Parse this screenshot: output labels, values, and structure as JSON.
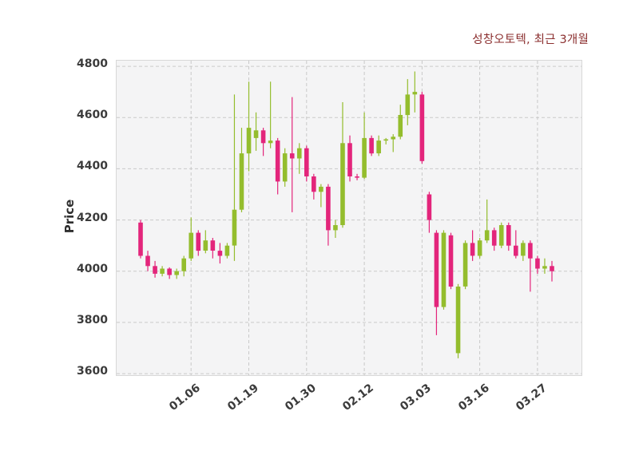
{
  "title": "성창오토텍, 최근 3개월",
  "colors": {
    "up": "#94bd2d",
    "down": "#e3257b",
    "grid": "#c9c9c9",
    "plot_background": "#f4f4f5",
    "title_text": "#8b2f2f",
    "tick_text": "#3b3b3b"
  },
  "chart_data": {
    "type": "candlestick",
    "title": "성창오토텍, 최근 3개월",
    "ylabel": "Price",
    "grid": "dashed",
    "legend": "none",
    "ylim": [
      3594,
      4822
    ],
    "yticks": [
      3600,
      3800,
      4000,
      4200,
      4400,
      4600,
      4800
    ],
    "xticks": [
      {
        "label": "01.06",
        "i": 7
      },
      {
        "label": "01.19",
        "i": 15
      },
      {
        "label": "01.30",
        "i": 23
      },
      {
        "label": "02.12",
        "i": 31
      },
      {
        "label": "03.03",
        "i": 39
      },
      {
        "label": "03.16",
        "i": 47
      },
      {
        "label": "03.27",
        "i": 55
      }
    ],
    "ohlc_order": [
      "open",
      "high",
      "low",
      "close"
    ],
    "candles": [
      [
        4190,
        4200,
        4050,
        4060
      ],
      [
        4060,
        4080,
        4000,
        4020
      ],
      [
        4020,
        4040,
        3975,
        3990
      ],
      [
        3990,
        4020,
        3980,
        4010
      ],
      [
        4010,
        4015,
        3970,
        3985
      ],
      [
        3985,
        4010,
        3970,
        4000
      ],
      [
        4000,
        4060,
        3980,
        4050
      ],
      [
        4050,
        4210,
        4040,
        4150
      ],
      [
        4150,
        4160,
        4060,
        4080
      ],
      [
        4080,
        4160,
        4070,
        4120
      ],
      [
        4120,
        4130,
        4050,
        4080
      ],
      [
        4080,
        4110,
        4030,
        4060
      ],
      [
        4060,
        4110,
        4050,
        4100
      ],
      [
        4100,
        4690,
        4040,
        4240
      ],
      [
        4240,
        4560,
        4230,
        4460
      ],
      [
        4460,
        4740,
        4390,
        4560
      ],
      [
        4520,
        4620,
        4470,
        4550
      ],
      [
        4550,
        4560,
        4450,
        4500
      ],
      [
        4500,
        4740,
        4480,
        4510
      ],
      [
        4510,
        4520,
        4300,
        4350
      ],
      [
        4350,
        4480,
        4330,
        4460
      ],
      [
        4460,
        4680,
        4230,
        4440
      ],
      [
        4440,
        4500,
        4380,
        4480
      ],
      [
        4480,
        4490,
        4350,
        4370
      ],
      [
        4370,
        4380,
        4280,
        4310
      ],
      [
        4310,
        4340,
        4250,
        4330
      ],
      [
        4330,
        4340,
        4100,
        4160
      ],
      [
        4160,
        4200,
        4130,
        4180
      ],
      [
        4180,
        4660,
        4170,
        4500
      ],
      [
        4500,
        4530,
        4350,
        4370
      ],
      [
        4370,
        4380,
        4355,
        4365
      ],
      [
        4365,
        4620,
        4360,
        4520
      ],
      [
        4520,
        4530,
        4450,
        4460
      ],
      [
        4460,
        4530,
        4450,
        4510
      ],
      [
        4510,
        4520,
        4495,
        4515
      ],
      [
        4515,
        4535,
        4465,
        4525
      ],
      [
        4525,
        4650,
        4515,
        4610
      ],
      [
        4610,
        4750,
        4570,
        4690
      ],
      [
        4690,
        4780,
        4620,
        4700
      ],
      [
        4690,
        4700,
        4420,
        4430
      ],
      [
        4300,
        4310,
        4150,
        4200
      ],
      [
        4150,
        4160,
        3750,
        3860
      ],
      [
        3860,
        4160,
        3850,
        4150
      ],
      [
        4140,
        4150,
        3930,
        3940
      ],
      [
        3680,
        3950,
        3660,
        3940
      ],
      [
        3940,
        4120,
        3930,
        4110
      ],
      [
        4110,
        4160,
        4040,
        4060
      ],
      [
        4060,
        4130,
        4050,
        4120
      ],
      [
        4120,
        4280,
        4110,
        4160
      ],
      [
        4160,
        4170,
        4080,
        4100
      ],
      [
        4100,
        4190,
        4090,
        4180
      ],
      [
        4180,
        4190,
        4080,
        4100
      ],
      [
        4100,
        4160,
        4050,
        4060
      ],
      [
        4060,
        4120,
        4040,
        4110
      ],
      [
        4110,
        4120,
        3920,
        4050
      ],
      [
        4050,
        4060,
        3990,
        4010
      ],
      [
        4010,
        4050,
        3990,
        4020
      ],
      [
        4020,
        4040,
        3960,
        4000
      ]
    ]
  }
}
